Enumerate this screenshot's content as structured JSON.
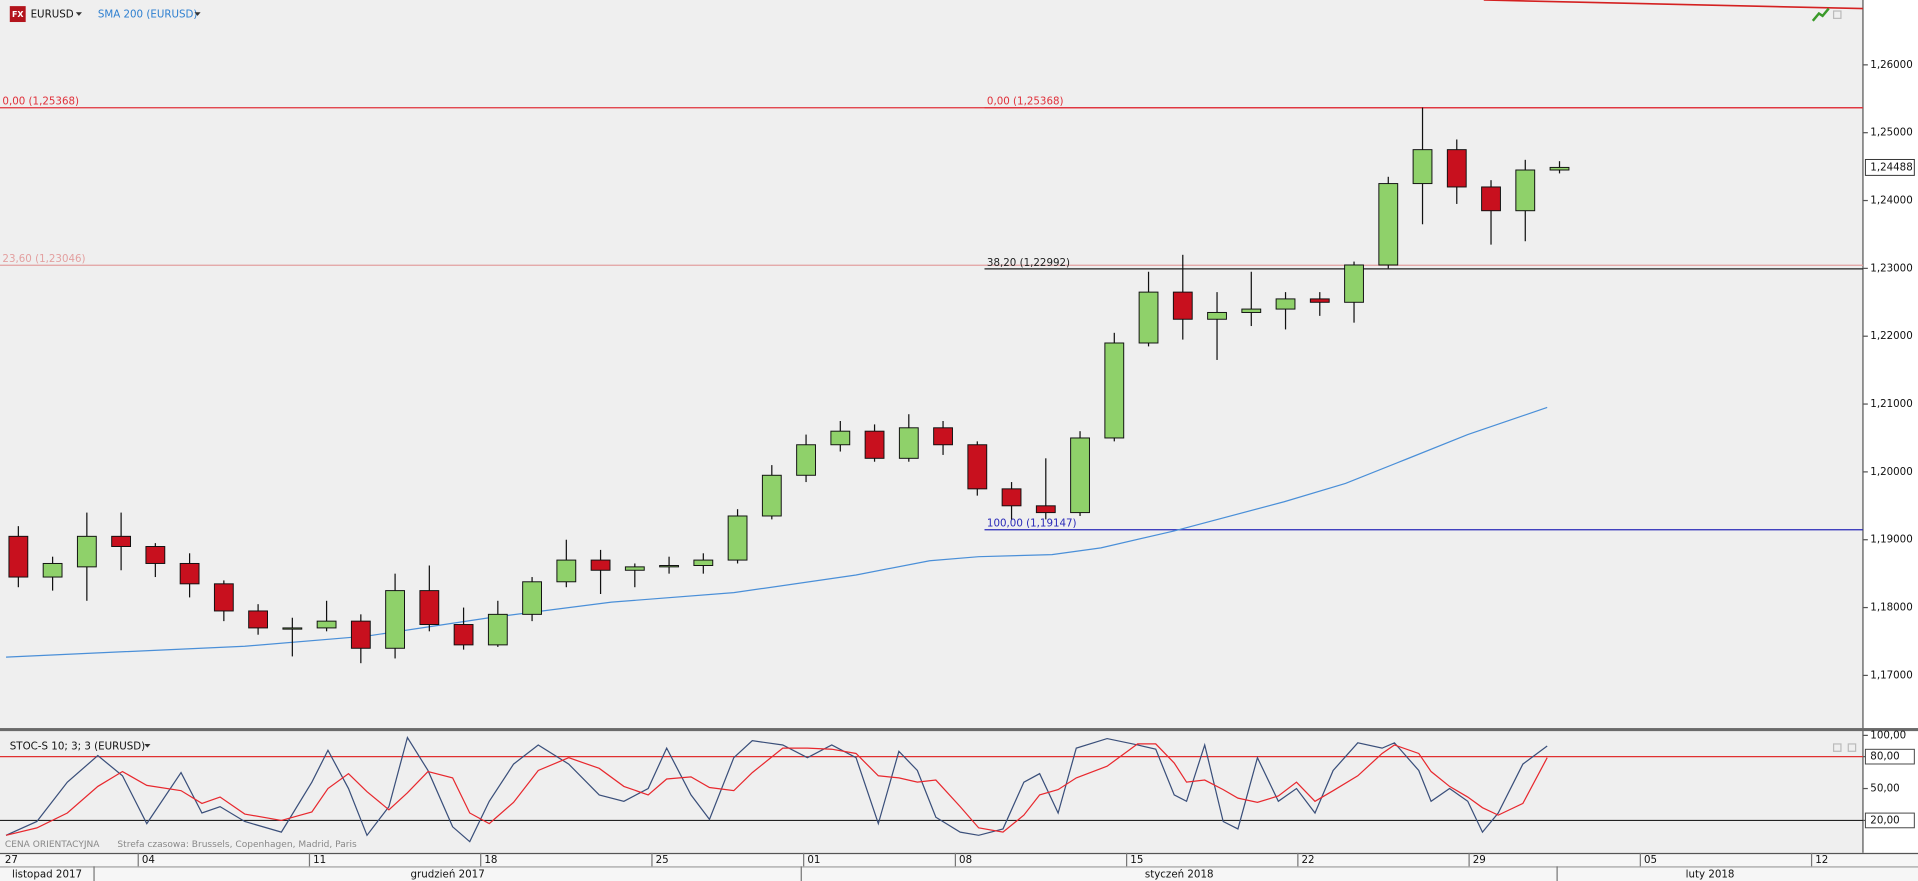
{
  "header": {
    "icon": "FX",
    "symbol": "EURUSD"
  },
  "chart_data": [
    {
      "type": "candlestick",
      "title": "EURUSD",
      "xlim": [
        0.964,
        55.36
      ],
      "ylim": [
        1.16224,
        1.26956
      ],
      "yticks": [
        {
          "value": 1.17,
          "label": "1,17000"
        },
        {
          "value": 1.18,
          "label": "1,18000"
        },
        {
          "value": 1.19,
          "label": "1,19000"
        },
        {
          "value": 1.2,
          "label": "1,20000"
        },
        {
          "value": 1.21,
          "label": "1,21000"
        },
        {
          "value": 1.22,
          "label": "1,22000"
        },
        {
          "value": 1.23,
          "label": "1,23000"
        },
        {
          "value": 1.24,
          "label": "1,24000"
        },
        {
          "value": 1.25,
          "label": "1,25000"
        },
        {
          "value": 1.26,
          "label": "1,26000"
        }
      ],
      "candles": {
        "up_color": "#8fd16a",
        "down_color": "#c8101e",
        "x": [
          1,
          2,
          3,
          4,
          5,
          6,
          7,
          8,
          9,
          10,
          11,
          12,
          13,
          14,
          15,
          16,
          17,
          18,
          19,
          20,
          21,
          22,
          23,
          24,
          25,
          26,
          27,
          28,
          29,
          30,
          31,
          32,
          33,
          34,
          35,
          36,
          37,
          38,
          39,
          40,
          41,
          42,
          43,
          44,
          45,
          46
        ],
        "open": [
          1.1905,
          1.1845,
          1.186,
          1.1905,
          1.189,
          1.1865,
          1.1835,
          1.1795,
          1.177,
          1.177,
          1.178,
          1.174,
          1.1825,
          1.1775,
          1.1745,
          1.179,
          1.1838,
          1.187,
          1.1855,
          1.186,
          1.1862,
          1.187,
          1.1935,
          1.1995,
          1.204,
          1.206,
          1.202,
          1.2065,
          1.204,
          1.1975,
          1.195,
          1.194,
          1.205,
          1.219,
          1.2265,
          1.2225,
          1.2235,
          1.224,
          1.2255,
          1.225,
          1.2305,
          1.2425,
          1.2475,
          1.242,
          1.2385,
          1.2445
        ],
        "high": [
          1.192,
          1.1875,
          1.194,
          1.194,
          1.1895,
          1.188,
          1.184,
          1.1805,
          1.1785,
          1.181,
          1.179,
          1.185,
          1.1862,
          1.18,
          1.181,
          1.1845,
          1.19,
          1.1885,
          1.1865,
          1.1875,
          1.188,
          1.1945,
          1.201,
          1.2055,
          1.2075,
          1.207,
          1.2085,
          1.2075,
          1.2045,
          1.1985,
          1.202,
          1.206,
          1.2205,
          1.2295,
          1.232,
          1.2265,
          1.2295,
          1.2265,
          1.2265,
          1.231,
          1.2435,
          1.2537,
          1.249,
          1.243,
          1.246,
          1.2458
        ],
        "low": [
          1.183,
          1.1825,
          1.181,
          1.1855,
          1.1845,
          1.1815,
          1.178,
          1.176,
          1.1728,
          1.1765,
          1.1718,
          1.1725,
          1.1765,
          1.1738,
          1.1742,
          1.178,
          1.183,
          1.182,
          1.183,
          1.185,
          1.185,
          1.1865,
          1.193,
          1.1985,
          1.203,
          1.2015,
          1.2015,
          1.2025,
          1.1965,
          1.193,
          1.193,
          1.1935,
          1.2045,
          1.2185,
          1.2195,
          1.2165,
          1.2215,
          1.221,
          1.223,
          1.222,
          1.23,
          1.2365,
          1.2395,
          1.2335,
          1.234,
          1.244
        ],
        "close": [
          1.1845,
          1.1865,
          1.1905,
          1.189,
          1.1865,
          1.1835,
          1.1795,
          1.177,
          1.177,
          1.178,
          1.174,
          1.1825,
          1.1775,
          1.1745,
          1.179,
          1.1838,
          1.187,
          1.1855,
          1.186,
          1.1862,
          1.187,
          1.1935,
          1.1995,
          1.204,
          1.206,
          1.202,
          1.2065,
          1.204,
          1.1975,
          1.195,
          1.194,
          1.205,
          1.219,
          1.2265,
          1.2225,
          1.2235,
          1.224,
          1.2255,
          1.225,
          1.2305,
          1.2425,
          1.2475,
          1.242,
          1.2385,
          1.2445,
          1.24488
        ]
      },
      "series": [
        {
          "name": "SMA 200 (EURUSD)",
          "color": "#4a8fd8",
          "x": [
            1.14,
            8.11,
            11.68,
            15.25,
            18.82,
            22.39,
            25.96,
            28.11,
            29.54,
            31.68,
            33.11,
            35.25,
            38.46,
            40.25,
            42.04,
            43.82,
            46.14
          ],
          "values": [
            1.1727,
            1.1743,
            1.1758,
            1.1785,
            1.1808,
            1.1822,
            1.1848,
            1.1869,
            1.1875,
            1.1878,
            1.1888,
            1.1913,
            1.1956,
            1.1983,
            1.2019,
            1.2055,
            1.2095
          ]
        }
      ],
      "last_price": {
        "value": 1.24488,
        "label": "1,24488"
      },
      "fibonacci": [
        {
          "from": 0.964,
          "levels": [
            {
              "label": "0,00 (1,25368)",
              "value": 1.25368,
              "color": "#e0303a"
            },
            {
              "label": "23,60 (1,23046)",
              "value": 1.23046,
              "color": "#e3a0a0"
            }
          ]
        },
        {
          "from": 29.71,
          "levels": [
            {
              "label": "0,00 (1,25368)",
              "value": 1.25368,
              "color": "#e0303a"
            },
            {
              "label": "38,20 (1,22992)",
              "value": 1.22992,
              "color": "#222222"
            },
            {
              "label": "100,00 (1,19147)",
              "value": 1.19147,
              "color": "#2a2ab8"
            }
          ]
        }
      ]
    },
    {
      "type": "line",
      "title": "STOC-S 10; 3; 3 (EURUSD)",
      "xlim": [
        0.964,
        55.36
      ],
      "ylim": [
        -10.5,
        104.6
      ],
      "yticks": [
        {
          "value": 100,
          "label": "100,00"
        },
        {
          "value": 80,
          "label": "80,00"
        },
        {
          "value": 50,
          "label": "50,00"
        },
        {
          "value": 20,
          "label": "20,00"
        }
      ],
      "levels": [
        {
          "value": 80,
          "color": "#e03030"
        },
        {
          "value": 20,
          "color": "#222222"
        }
      ],
      "x": [
        1.14,
        2.04,
        2.93,
        3.82,
        4.54,
        5.25,
        6.25,
        6.86,
        7.39,
        8.11,
        9.18,
        10.07,
        10.54,
        11.14,
        11.68,
        12.32,
        12.86,
        13.46,
        14.18,
        14.68,
        15.25,
        15.96,
        16.68,
        17.57,
        18.46,
        19.18,
        19.89,
        20.43,
        21.14,
        21.68,
        22.39,
        22.93,
        23.82,
        24.54,
        25.25,
        25.96,
        26.61,
        27.21,
        27.75,
        28.29,
        29,
        29.54,
        30.25,
        30.86,
        31.32,
        31.86,
        32.39,
        33.29,
        34.18,
        34.71,
        35.25,
        35.61,
        36.14,
        36.68,
        37.11,
        37.68,
        38.29,
        38.82,
        39.36,
        39.89,
        40.61,
        41.32,
        41.68,
        42.39,
        42.75,
        43.29,
        43.82,
        44.25,
        44.71,
        45.43,
        46.14
      ],
      "series": [
        {
          "color": "#3a4f7a",
          "values": [
            6,
            19,
            56,
            81,
            62,
            17,
            65,
            27,
            33,
            19,
            9,
            56,
            86,
            50,
            6,
            33,
            98,
            67,
            14,
            0,
            38,
            73,
            91,
            73,
            44,
            38,
            50,
            88,
            44,
            21,
            79,
            95,
            91,
            79,
            91,
            79,
            17,
            85,
            67,
            23,
            9,
            6,
            12,
            56,
            64,
            27,
            88,
            97,
            91,
            87,
            44,
            38,
            91,
            19,
            12,
            79,
            38,
            50,
            27,
            67,
            93,
            88,
            93,
            67,
            38,
            50,
            38,
            9,
            27,
            73,
            90
          ]
        },
        {
          "color": "#e8282e",
          "values": [
            6,
            13,
            27,
            52,
            66,
            53,
            48,
            36,
            42,
            26,
            20,
            28,
            50,
            64,
            47,
            30,
            46,
            66,
            60,
            27,
            17,
            37,
            67,
            79,
            69,
            52,
            44,
            59,
            61,
            51,
            48,
            65,
            88,
            88,
            87,
            83,
            62,
            60,
            56,
            58,
            33,
            13,
            9,
            25,
            44,
            49,
            60,
            71,
            92,
            92,
            74,
            56,
            58,
            49,
            41,
            37,
            43,
            56,
            38,
            48,
            62,
            83,
            91,
            83,
            66,
            52,
            42,
            32,
            25,
            36,
            79
          ]
        }
      ]
    }
  ],
  "time_axis": {
    "day_ticks": [
      {
        "value": 0,
        "label": "27"
      },
      {
        "value": 5,
        "label": "04"
      },
      {
        "value": 10,
        "label": "11"
      },
      {
        "value": 15,
        "label": "18"
      },
      {
        "value": 20,
        "label": "25"
      },
      {
        "value": 24.43,
        "label": "01"
      },
      {
        "value": 28.86,
        "label": "08"
      },
      {
        "value": 33.86,
        "label": "15"
      },
      {
        "value": 38.86,
        "label": "22"
      },
      {
        "value": 43.86,
        "label": "29"
      },
      {
        "value": 48.86,
        "label": "05"
      },
      {
        "value": 53.86,
        "label": "12"
      }
    ],
    "month_ticks": [
      {
        "value": -18,
        "label": "listopad 2017"
      },
      {
        "value": 3.71,
        "label": "grudzień 2017"
      },
      {
        "value": 24.36,
        "label": "styczeń 2018"
      },
      {
        "value": 46.43,
        "label": "luty 2018"
      }
    ]
  },
  "footer": {
    "price_type": "CENA ORIENTACYJNA",
    "timezone": "Strefa czasowa: Brussels, Copenhagen, Madrid, Paris"
  }
}
